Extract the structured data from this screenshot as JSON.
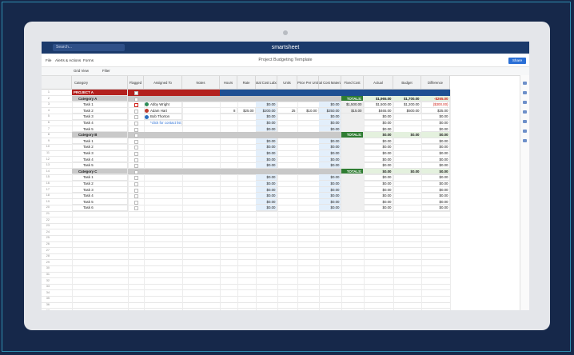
{
  "header": {
    "search": "Search...",
    "brand": "smartsheet"
  },
  "menu": {
    "items": [
      "File",
      "Alerts & Actions",
      "Forms"
    ],
    "title": "Project Budgeting Template",
    "share": "Share"
  },
  "toolbar": {
    "view": "Grid View",
    "filter": "Filter"
  },
  "table": {
    "columns": [
      "Category",
      "Flagged",
      "Assigned To",
      "Notes",
      "Hours",
      "Rate",
      "Total Cost Labor",
      "Units",
      "Price Per Unit",
      "Total Cost Materials",
      "Fixed Cost",
      "Actual",
      "Budget",
      "Difference"
    ],
    "row_numbers": [
      1,
      2,
      3,
      4,
      5,
      6,
      7,
      8,
      9,
      10,
      11,
      12,
      13,
      14,
      15,
      16,
      17,
      18,
      19,
      20,
      21,
      22,
      23,
      24,
      25,
      26,
      27,
      28,
      29,
      30,
      31,
      32,
      33,
      34,
      35,
      36,
      37,
      38,
      39,
      40,
      41,
      42,
      43
    ],
    "rows": [
      {
        "kind": "project",
        "cells": [
          "PROJECT A",
          null,
          null,
          null,
          null,
          null,
          null,
          null,
          null,
          null,
          null,
          null,
          null,
          null
        ]
      },
      {
        "kind": "category",
        "cells": [
          "Category A",
          null,
          null,
          null,
          null,
          null,
          null,
          null,
          null,
          null,
          "TOTALS:",
          "$1,965.00",
          "$1,700.00",
          "-$265.00"
        ]
      },
      {
        "kind": "task",
        "cells": [
          "Task 1",
          null,
          "Abby Wright",
          null,
          null,
          null,
          "$0.00",
          null,
          null,
          "$0.00",
          "$1,500.00",
          "$1,500.00",
          "$1,200.00",
          "($300.00)"
        ]
      },
      {
        "kind": "task",
        "cells": [
          "Task 2",
          null,
          "Adam Hart",
          null,
          "8",
          "$25.00",
          "$200.00",
          "25",
          "$10.00",
          "$250.00",
          "$15.00",
          "$465.00",
          "$500.00",
          "$35.00"
        ]
      },
      {
        "kind": "task",
        "cells": [
          "Task 3",
          null,
          "Bob Thorton",
          null,
          null,
          null,
          "$0.00",
          null,
          null,
          "$0.00",
          null,
          "$0.00",
          null,
          "$0.00"
        ]
      },
      {
        "kind": "task",
        "cells": [
          "Task 4",
          null,
          "*click for contact list",
          null,
          null,
          null,
          "$0.00",
          null,
          null,
          "$0.00",
          null,
          "$0.00",
          null,
          "$0.00"
        ]
      },
      {
        "kind": "task",
        "cells": [
          "Task 5",
          null,
          null,
          null,
          null,
          null,
          "$0.00",
          null,
          null,
          "$0.00",
          null,
          "$0.00",
          null,
          "$0.00"
        ]
      },
      {
        "kind": "category",
        "cells": [
          "Category B",
          null,
          null,
          null,
          null,
          null,
          null,
          null,
          null,
          null,
          "TOTALS:",
          "$0.00",
          "$0.00",
          "$0.00"
        ]
      },
      {
        "kind": "task",
        "cells": [
          "Task 1",
          null,
          null,
          null,
          null,
          null,
          "$0.00",
          null,
          null,
          "$0.00",
          null,
          "$0.00",
          null,
          "$0.00"
        ]
      },
      {
        "kind": "task",
        "cells": [
          "Task 2",
          null,
          null,
          null,
          null,
          null,
          "$0.00",
          null,
          null,
          "$0.00",
          null,
          "$0.00",
          null,
          "$0.00"
        ]
      },
      {
        "kind": "task",
        "cells": [
          "Task 3",
          null,
          null,
          null,
          null,
          null,
          "$0.00",
          null,
          null,
          "$0.00",
          null,
          "$0.00",
          null,
          "$0.00"
        ]
      },
      {
        "kind": "task",
        "cells": [
          "Task 4",
          null,
          null,
          null,
          null,
          null,
          "$0.00",
          null,
          null,
          "$0.00",
          null,
          "$0.00",
          null,
          "$0.00"
        ]
      },
      {
        "kind": "task",
        "cells": [
          "Task 5",
          null,
          null,
          null,
          null,
          null,
          "$0.00",
          null,
          null,
          "$0.00",
          null,
          "$0.00",
          null,
          "$0.00"
        ]
      },
      {
        "kind": "category",
        "cells": [
          "Category C",
          null,
          null,
          null,
          null,
          null,
          null,
          null,
          null,
          null,
          "TOTALS:",
          "$0.00",
          "$0.00",
          "$0.00"
        ]
      },
      {
        "kind": "task",
        "cells": [
          "Task 1",
          null,
          null,
          null,
          null,
          null,
          "$0.00",
          null,
          null,
          "$0.00",
          null,
          "$0.00",
          null,
          "$0.00"
        ]
      },
      {
        "kind": "task",
        "cells": [
          "Task 2",
          null,
          null,
          null,
          null,
          null,
          "$0.00",
          null,
          null,
          "$0.00",
          null,
          "$0.00",
          null,
          "$0.00"
        ]
      },
      {
        "kind": "task",
        "cells": [
          "Task 3",
          null,
          null,
          null,
          null,
          null,
          "$0.00",
          null,
          null,
          "$0.00",
          null,
          "$0.00",
          null,
          "$0.00"
        ]
      },
      {
        "kind": "task",
        "cells": [
          "Task 4",
          null,
          null,
          null,
          null,
          null,
          "$0.00",
          null,
          null,
          "$0.00",
          null,
          "$0.00",
          null,
          "$0.00"
        ]
      },
      {
        "kind": "task",
        "cells": [
          "Task 5",
          null,
          null,
          null,
          null,
          null,
          "$0.00",
          null,
          null,
          "$0.00",
          null,
          "$0.00",
          null,
          "$0.00"
        ]
      },
      {
        "kind": "task",
        "cells": [
          "Task 6",
          null,
          null,
          null,
          null,
          null,
          "$0.00",
          null,
          null,
          "$0.00",
          null,
          "$0.00",
          null,
          "$0.00"
        ]
      }
    ]
  }
}
